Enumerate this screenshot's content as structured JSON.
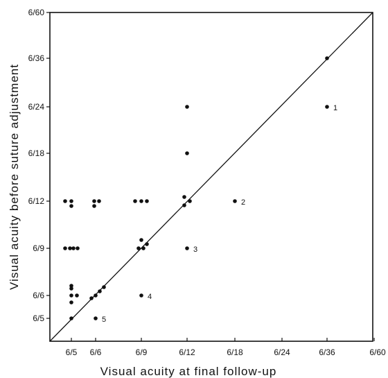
{
  "chart_data": {
    "type": "scatter",
    "title": "",
    "xlabel": "Visual acuity at final follow-up",
    "ylabel": "Visual acuity before suture adjustment",
    "x_ticks": [
      "6/5",
      "6/6",
      "6/9",
      "6/12",
      "6/18",
      "6/24",
      "6/36",
      "6/60"
    ],
    "y_ticks": [
      "6/5",
      "6/6",
      "6/9",
      "6/12",
      "6/18",
      "6/24",
      "6/36",
      "6/60"
    ],
    "xlim": [
      "6/5",
      "6/60"
    ],
    "ylim": [
      "6/5",
      "6/60"
    ],
    "grid": false,
    "reference_line": "y = x",
    "points": [
      {
        "x": "6/5",
        "y": "6/12"
      },
      {
        "x": "6/5",
        "y": "6/12"
      },
      {
        "x": "6/5",
        "y": "6/12"
      },
      {
        "x": "6/6",
        "y": "6/12"
      },
      {
        "x": "6/6",
        "y": "6/12"
      },
      {
        "x": "6/6",
        "y": "6/12"
      },
      {
        "x": "6/9",
        "y": "6/12"
      },
      {
        "x": "6/9",
        "y": "6/12"
      },
      {
        "x": "6/9",
        "y": "6/12"
      },
      {
        "x": "6/12",
        "y": "6/12"
      },
      {
        "x": "6/12",
        "y": "6/12"
      },
      {
        "x": "6/12",
        "y": "6/12"
      },
      {
        "x": "6/18",
        "y": "6/12",
        "label": "2"
      },
      {
        "x": "6/5",
        "y": "6/9"
      },
      {
        "x": "6/5",
        "y": "6/9"
      },
      {
        "x": "6/5",
        "y": "6/9"
      },
      {
        "x": "6/5",
        "y": "6/9"
      },
      {
        "x": "6/9",
        "y": "6/9"
      },
      {
        "x": "6/9",
        "y": "6/9"
      },
      {
        "x": "6/9",
        "y": "6/9"
      },
      {
        "x": "6/9",
        "y": "6/9"
      },
      {
        "x": "6/12",
        "y": "6/9",
        "label": "3"
      },
      {
        "x": "6/5",
        "y": "6/6"
      },
      {
        "x": "6/5",
        "y": "6/6"
      },
      {
        "x": "6/5",
        "y": "6/6"
      },
      {
        "x": "6/5",
        "y": "6/6"
      },
      {
        "x": "6/5",
        "y": "6/6"
      },
      {
        "x": "6/6",
        "y": "6/6"
      },
      {
        "x": "6/6",
        "y": "6/6"
      },
      {
        "x": "6/6",
        "y": "6/6"
      },
      {
        "x": "6/6",
        "y": "6/6"
      },
      {
        "x": "6/9",
        "y": "6/6",
        "label": "4"
      },
      {
        "x": "6/5",
        "y": "6/5"
      },
      {
        "x": "6/6",
        "y": "6/5",
        "label": "5"
      },
      {
        "x": "6/12",
        "y": "6/18"
      },
      {
        "x": "6/12",
        "y": "6/24"
      },
      {
        "x": "6/36",
        "y": "6/24",
        "label": "1"
      },
      {
        "x": "6/36",
        "y": "6/36"
      }
    ]
  }
}
